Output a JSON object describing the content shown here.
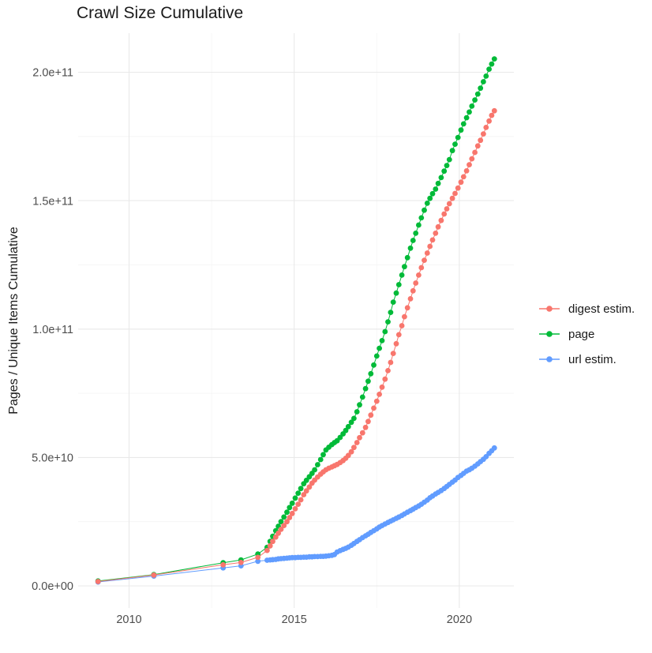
{
  "figure": {
    "title": "Crawl Size Cumulative"
  },
  "chart_data": {
    "type": "scatter",
    "title": "Crawl Size Cumulative",
    "xlabel": "",
    "ylabel": "Pages / Unique Items Cumulative",
    "grid": true,
    "legend_position": "right",
    "x_range": [
      2008.4,
      2021.7
    ],
    "y_range_e9": [
      -10,
      215
    ],
    "x_ticks": [
      {
        "value": 2010,
        "label": "2010"
      },
      {
        "value": 2015,
        "label": "2015"
      },
      {
        "value": 2020,
        "label": "2020"
      }
    ],
    "x_minor_ticks": [
      2012.5,
      2017.5
    ],
    "y_ticks": [
      {
        "value_e9": 0,
        "label": "0.0e+00"
      },
      {
        "value_e9": 50,
        "label": "5.0e+10"
      },
      {
        "value_e9": 100,
        "label": "1.0e+11"
      },
      {
        "value_e9": 150,
        "label": "1.5e+11"
      },
      {
        "value_e9": 200,
        "label": "2.0e+11"
      }
    ],
    "y_minor_ticks_e9": [
      25,
      75,
      125,
      175
    ],
    "units_note": "values in billions (1e9) of pages / unique items",
    "series": [
      {
        "name": "digest estim.",
        "color": "#F8766D",
        "points": [
          [
            2009.06,
            1.7
          ],
          [
            2010.75,
            4.2
          ],
          [
            2012.85,
            8.2
          ],
          [
            2013.39,
            9.1
          ],
          [
            2013.9,
            11.1
          ],
          [
            2014.18,
            13.8
          ],
          [
            2014.27,
            15.6
          ],
          [
            2014.35,
            17.3
          ],
          [
            2014.44,
            19.0
          ],
          [
            2014.52,
            20.5
          ],
          [
            2014.6,
            22.0
          ],
          [
            2014.69,
            23.5
          ],
          [
            2014.78,
            25.0
          ],
          [
            2014.86,
            26.6
          ],
          [
            2014.94,
            28.2
          ],
          [
            2015.03,
            30.0
          ],
          [
            2015.12,
            31.8
          ],
          [
            2015.2,
            33.5
          ],
          [
            2015.29,
            35.5
          ],
          [
            2015.37,
            37.0
          ],
          [
            2015.46,
            38.5
          ],
          [
            2015.54,
            40.0
          ],
          [
            2015.62,
            41.2
          ],
          [
            2015.71,
            42.4
          ],
          [
            2015.8,
            43.5
          ],
          [
            2015.88,
            44.4
          ],
          [
            2015.96,
            45.2
          ],
          [
            2016.05,
            45.8
          ],
          [
            2016.14,
            46.3
          ],
          [
            2016.22,
            46.8
          ],
          [
            2016.3,
            47.3
          ],
          [
            2016.39,
            48.0
          ],
          [
            2016.48,
            48.8
          ],
          [
            2016.56,
            49.7
          ],
          [
            2016.64,
            50.8
          ],
          [
            2016.73,
            52.2
          ],
          [
            2016.81,
            53.9
          ],
          [
            2016.9,
            55.8
          ],
          [
            2016.98,
            57.7
          ],
          [
            2017.07,
            59.6
          ],
          [
            2017.16,
            61.7
          ],
          [
            2017.24,
            64.0
          ],
          [
            2017.32,
            66.5
          ],
          [
            2017.41,
            69.2
          ],
          [
            2017.5,
            71.9
          ],
          [
            2017.58,
            74.6
          ],
          [
            2017.66,
            77.4
          ],
          [
            2017.75,
            80.5
          ],
          [
            2017.84,
            83.8
          ],
          [
            2017.92,
            87.0
          ],
          [
            2018.0,
            90.5
          ],
          [
            2018.09,
            94.3
          ],
          [
            2018.17,
            97.8
          ],
          [
            2018.26,
            101.3
          ],
          [
            2018.34,
            104.8
          ],
          [
            2018.43,
            108.3
          ],
          [
            2018.52,
            111.8
          ],
          [
            2018.6,
            114.9
          ],
          [
            2018.68,
            117.9
          ],
          [
            2018.77,
            121.0
          ],
          [
            2018.85,
            123.9
          ],
          [
            2018.94,
            126.8
          ],
          [
            2019.03,
            129.6
          ],
          [
            2019.11,
            132.2
          ],
          [
            2019.19,
            134.7
          ],
          [
            2019.28,
            137.3
          ],
          [
            2019.36,
            139.8
          ],
          [
            2019.45,
            142.3
          ],
          [
            2019.54,
            144.8
          ],
          [
            2019.62,
            146.8
          ],
          [
            2019.7,
            148.8
          ],
          [
            2019.79,
            150.9
          ],
          [
            2019.87,
            152.8
          ],
          [
            2019.96,
            154.9
          ],
          [
            2020.05,
            157.2
          ],
          [
            2020.13,
            159.3
          ],
          [
            2020.22,
            161.6
          ],
          [
            2020.3,
            164.0
          ],
          [
            2020.38,
            166.3
          ],
          [
            2020.47,
            168.8
          ],
          [
            2020.56,
            171.3
          ],
          [
            2020.64,
            173.5
          ],
          [
            2020.73,
            176.0
          ],
          [
            2020.81,
            178.5
          ],
          [
            2020.9,
            181.0
          ],
          [
            2020.98,
            183.2
          ],
          [
            2021.06,
            185.0
          ]
        ]
      },
      {
        "name": "page",
        "color": "#00BA38",
        "points": [
          [
            2009.06,
            1.9
          ],
          [
            2010.75,
            4.4
          ],
          [
            2012.85,
            9.0
          ],
          [
            2013.39,
            10.1
          ],
          [
            2013.9,
            12.4
          ],
          [
            2014.18,
            15.0
          ],
          [
            2014.27,
            17.3
          ],
          [
            2014.35,
            19.3
          ],
          [
            2014.44,
            21.5
          ],
          [
            2014.52,
            23.2
          ],
          [
            2014.6,
            25.0
          ],
          [
            2014.69,
            26.8
          ],
          [
            2014.78,
            28.7
          ],
          [
            2014.86,
            30.5
          ],
          [
            2014.94,
            32.2
          ],
          [
            2015.03,
            34.2
          ],
          [
            2015.12,
            36.1
          ],
          [
            2015.2,
            37.9
          ],
          [
            2015.29,
            39.8
          ],
          [
            2015.37,
            41.1
          ],
          [
            2015.46,
            42.5
          ],
          [
            2015.54,
            43.8
          ],
          [
            2015.62,
            45.2
          ],
          [
            2015.71,
            47.2
          ],
          [
            2015.8,
            49.2
          ],
          [
            2015.88,
            51.1
          ],
          [
            2015.96,
            52.9
          ],
          [
            2016.05,
            54.0
          ],
          [
            2016.14,
            55.0
          ],
          [
            2016.22,
            55.8
          ],
          [
            2016.3,
            56.5
          ],
          [
            2016.39,
            57.8
          ],
          [
            2016.48,
            59.2
          ],
          [
            2016.56,
            60.5
          ],
          [
            2016.64,
            62.0
          ],
          [
            2016.73,
            63.7
          ],
          [
            2016.81,
            65.2
          ],
          [
            2016.9,
            67.8
          ],
          [
            2016.98,
            70.5
          ],
          [
            2017.07,
            73.5
          ],
          [
            2017.16,
            76.8
          ],
          [
            2017.24,
            79.7
          ],
          [
            2017.32,
            82.6
          ],
          [
            2017.41,
            86.0
          ],
          [
            2017.5,
            89.5
          ],
          [
            2017.58,
            92.5
          ],
          [
            2017.66,
            95.5
          ],
          [
            2017.75,
            99.0
          ],
          [
            2017.84,
            102.8
          ],
          [
            2017.92,
            106.5
          ],
          [
            2018.0,
            110.5
          ],
          [
            2018.09,
            114.0
          ],
          [
            2018.17,
            117.3
          ],
          [
            2018.26,
            121.0
          ],
          [
            2018.34,
            124.3
          ],
          [
            2018.43,
            127.8
          ],
          [
            2018.52,
            131.5
          ],
          [
            2018.6,
            134.5
          ],
          [
            2018.68,
            137.3
          ],
          [
            2018.77,
            140.5
          ],
          [
            2018.85,
            143.3
          ],
          [
            2018.94,
            146.3
          ],
          [
            2019.03,
            149.0
          ],
          [
            2019.11,
            150.9
          ],
          [
            2019.19,
            152.7
          ],
          [
            2019.28,
            154.5
          ],
          [
            2019.36,
            156.7
          ],
          [
            2019.45,
            159.0
          ],
          [
            2019.54,
            161.5
          ],
          [
            2019.62,
            163.7
          ],
          [
            2019.7,
            166.0
          ],
          [
            2019.79,
            169.5
          ],
          [
            2019.87,
            172.0
          ],
          [
            2019.96,
            174.6
          ],
          [
            2020.05,
            177.5
          ],
          [
            2020.13,
            179.9
          ],
          [
            2020.22,
            182.3
          ],
          [
            2020.3,
            184.5
          ],
          [
            2020.38,
            186.8
          ],
          [
            2020.47,
            189.2
          ],
          [
            2020.56,
            191.5
          ],
          [
            2020.64,
            193.8
          ],
          [
            2020.73,
            196.3
          ],
          [
            2020.81,
            198.5
          ],
          [
            2020.9,
            201.2
          ],
          [
            2020.98,
            203.2
          ],
          [
            2021.06,
            205.2
          ]
        ]
      },
      {
        "name": "url estim.",
        "color": "#619CFF",
        "points": [
          [
            2009.06,
            1.5
          ],
          [
            2010.75,
            3.8
          ],
          [
            2012.85,
            7.0
          ],
          [
            2013.39,
            7.8
          ],
          [
            2013.9,
            9.6
          ],
          [
            2014.18,
            10.0
          ],
          [
            2014.27,
            10.1
          ],
          [
            2014.35,
            10.2
          ],
          [
            2014.44,
            10.3
          ],
          [
            2014.52,
            10.5
          ],
          [
            2014.6,
            10.6
          ],
          [
            2014.69,
            10.7
          ],
          [
            2014.78,
            10.8
          ],
          [
            2014.86,
            10.9
          ],
          [
            2014.94,
            11.0
          ],
          [
            2015.03,
            11.0
          ],
          [
            2015.12,
            11.1
          ],
          [
            2015.2,
            11.1
          ],
          [
            2015.29,
            11.2
          ],
          [
            2015.37,
            11.2
          ],
          [
            2015.46,
            11.3
          ],
          [
            2015.54,
            11.3
          ],
          [
            2015.62,
            11.4
          ],
          [
            2015.71,
            11.4
          ],
          [
            2015.8,
            11.5
          ],
          [
            2015.88,
            11.5
          ],
          [
            2015.96,
            11.6
          ],
          [
            2016.05,
            11.7
          ],
          [
            2016.14,
            11.9
          ],
          [
            2016.22,
            12.2
          ],
          [
            2016.3,
            13.2
          ],
          [
            2016.39,
            13.7
          ],
          [
            2016.48,
            14.2
          ],
          [
            2016.56,
            14.6
          ],
          [
            2016.64,
            15.1
          ],
          [
            2016.73,
            15.8
          ],
          [
            2016.81,
            16.5
          ],
          [
            2016.9,
            17.3
          ],
          [
            2016.98,
            18.0
          ],
          [
            2017.07,
            18.8
          ],
          [
            2017.16,
            19.5
          ],
          [
            2017.24,
            20.1
          ],
          [
            2017.32,
            20.8
          ],
          [
            2017.41,
            21.5
          ],
          [
            2017.5,
            22.2
          ],
          [
            2017.58,
            22.9
          ],
          [
            2017.66,
            23.5
          ],
          [
            2017.75,
            24.1
          ],
          [
            2017.84,
            24.7
          ],
          [
            2017.92,
            25.2
          ],
          [
            2018.0,
            25.7
          ],
          [
            2018.09,
            26.3
          ],
          [
            2018.17,
            26.8
          ],
          [
            2018.26,
            27.4
          ],
          [
            2018.34,
            28.0
          ],
          [
            2018.43,
            28.7
          ],
          [
            2018.52,
            29.3
          ],
          [
            2018.6,
            29.9
          ],
          [
            2018.68,
            30.5
          ],
          [
            2018.77,
            31.1
          ],
          [
            2018.85,
            31.8
          ],
          [
            2018.94,
            32.6
          ],
          [
            2019.03,
            33.4
          ],
          [
            2019.11,
            34.3
          ],
          [
            2019.19,
            35.0
          ],
          [
            2019.28,
            35.8
          ],
          [
            2019.36,
            36.4
          ],
          [
            2019.45,
            37.1
          ],
          [
            2019.54,
            37.9
          ],
          [
            2019.62,
            38.7
          ],
          [
            2019.7,
            39.5
          ],
          [
            2019.79,
            40.4
          ],
          [
            2019.87,
            41.2
          ],
          [
            2019.96,
            42.2
          ],
          [
            2020.05,
            43.0
          ],
          [
            2020.13,
            43.8
          ],
          [
            2020.22,
            44.7
          ],
          [
            2020.3,
            45.2
          ],
          [
            2020.38,
            45.8
          ],
          [
            2020.47,
            46.6
          ],
          [
            2020.56,
            47.5
          ],
          [
            2020.64,
            48.4
          ],
          [
            2020.73,
            49.3
          ],
          [
            2020.81,
            50.3
          ],
          [
            2020.9,
            51.6
          ],
          [
            2020.98,
            52.6
          ],
          [
            2021.06,
            53.7
          ]
        ]
      }
    ]
  }
}
